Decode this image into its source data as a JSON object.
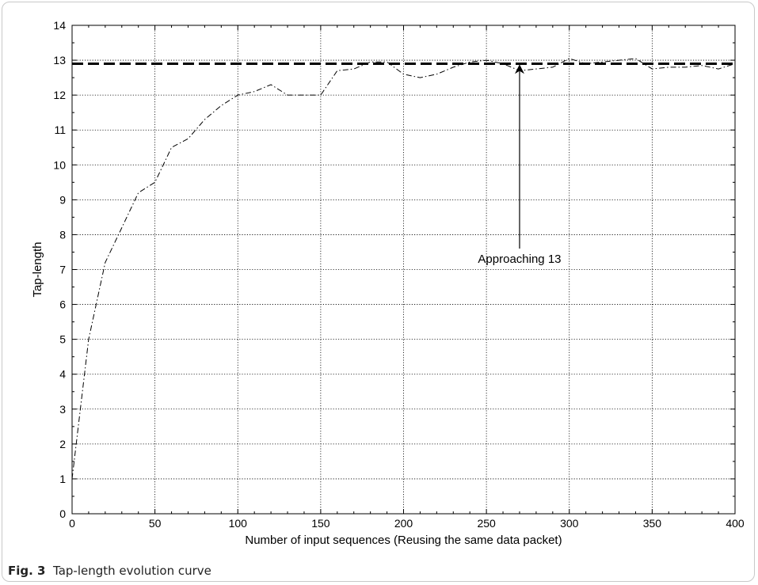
{
  "caption": {
    "figure_label": "Fig. 3",
    "text": "Tap-length evolution curve"
  },
  "chart_data": {
    "type": "line",
    "xlabel": "Number of input sequences (Reusing the same data packet)",
    "ylabel": "Tap-length",
    "xlim": [
      0,
      400
    ],
    "ylim": [
      0,
      14
    ],
    "xticks": [
      0,
      50,
      100,
      150,
      200,
      250,
      300,
      350,
      400
    ],
    "yticks": [
      0,
      1,
      2,
      3,
      4,
      5,
      6,
      7,
      8,
      9,
      10,
      11,
      12,
      13,
      14
    ],
    "grid": true,
    "series": [
      {
        "style": "dash-dot",
        "color": "#000000",
        "x": [
          0,
          10,
          20,
          30,
          40,
          50,
          60,
          70,
          80,
          90,
          100,
          110,
          120,
          130,
          140,
          150,
          160,
          170,
          180,
          190,
          200,
          210,
          220,
          230,
          240,
          250,
          260,
          270,
          280,
          290,
          300,
          310,
          320,
          330,
          340,
          350,
          360,
          370,
          380,
          390,
          400
        ],
        "y": [
          1.0,
          5.0,
          7.2,
          8.2,
          9.2,
          9.5,
          10.5,
          10.75,
          11.3,
          11.7,
          12.0,
          12.1,
          12.3,
          12.0,
          12.0,
          12.0,
          12.7,
          12.75,
          12.95,
          12.95,
          12.6,
          12.5,
          12.6,
          12.8,
          12.95,
          13.0,
          12.9,
          12.7,
          12.75,
          12.8,
          13.05,
          12.9,
          12.95,
          13.0,
          13.05,
          12.75,
          12.8,
          12.8,
          12.85,
          12.75,
          12.9
        ]
      },
      {
        "style": "dashed-thick",
        "color": "#000000",
        "x": [
          0,
          400
        ],
        "y": [
          12.9,
          12.9
        ]
      }
    ],
    "annotations": [
      {
        "text": "Approaching 13",
        "arrow_from": [
          270,
          7.6
        ],
        "arrow_to": [
          270,
          12.9
        ]
      }
    ]
  }
}
